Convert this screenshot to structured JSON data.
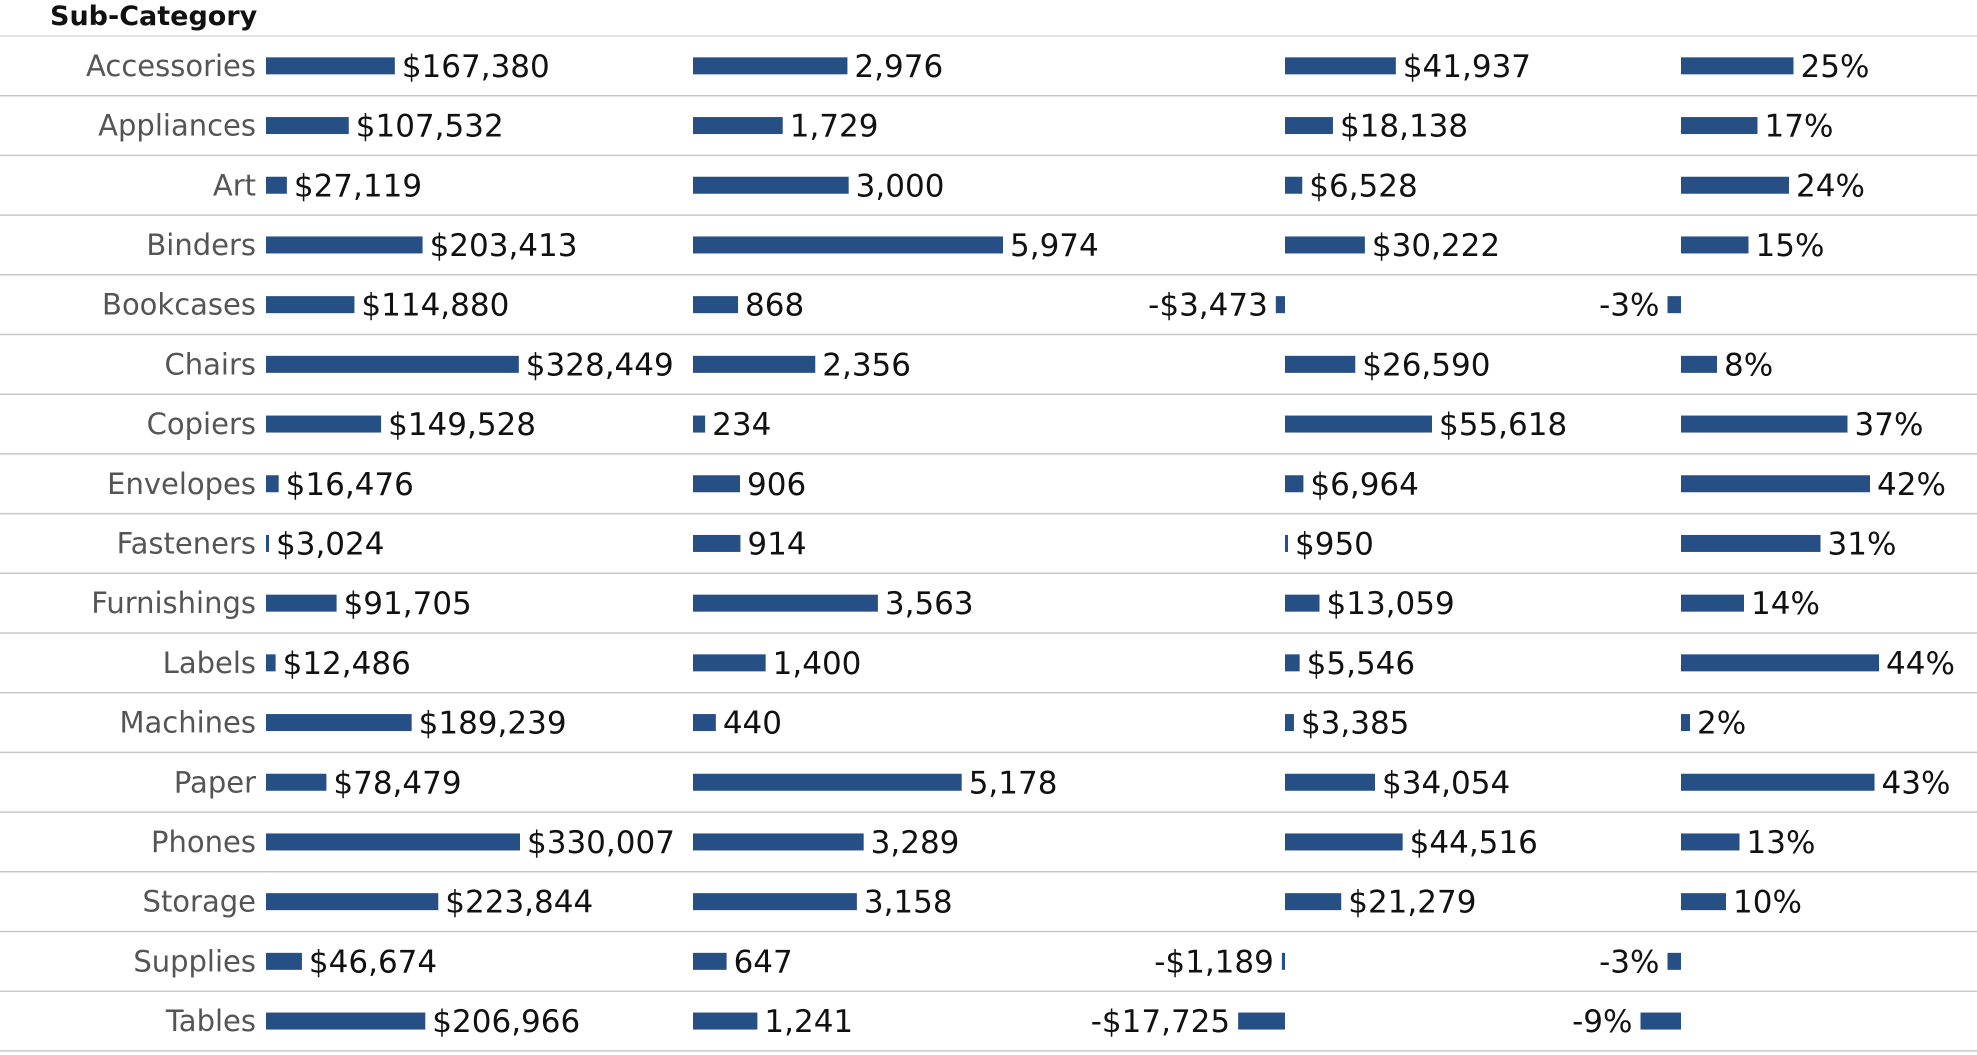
{
  "chart_data": {
    "type": "bar",
    "orientation": "horizontal",
    "header": "Sub-Category",
    "bar_color": "#264F85",
    "categories": [
      "Accessories",
      "Appliances",
      "Art",
      "Binders",
      "Bookcases",
      "Chairs",
      "Copiers",
      "Envelopes",
      "Fasteners",
      "Furnishings",
      "Labels",
      "Machines",
      "Paper",
      "Phones",
      "Storage",
      "Supplies",
      "Tables"
    ],
    "series": [
      {
        "values": [
          167380,
          107532,
          27119,
          203413,
          114880,
          328449,
          149528,
          16476,
          3024,
          91705,
          12486,
          189239,
          78479,
          330007,
          223844,
          46674,
          206966
        ],
        "labels": [
          "$167,380",
          "$107,532",
          "$27,119",
          "$203,413",
          "$114,880",
          "$328,449",
          "$149,528",
          "$16,476",
          "$3,024",
          "$91,705",
          "$12,486",
          "$189,239",
          "$78,479",
          "$330,007",
          "$223,844",
          "$46,674",
          "$206,966"
        ]
      },
      {
        "values": [
          2976,
          1729,
          3000,
          5974,
          868,
          2356,
          234,
          906,
          914,
          3563,
          1400,
          440,
          5178,
          3289,
          3158,
          647,
          1241
        ],
        "labels": [
          "2,976",
          "1,729",
          "3,000",
          "5,974",
          "868",
          "2,356",
          "234",
          "906",
          "914",
          "3,563",
          "1,400",
          "440",
          "5,178",
          "3,289",
          "3,158",
          "647",
          "1,241"
        ]
      },
      {
        "values": [
          41937,
          18138,
          6528,
          30222,
          -3473,
          26590,
          55618,
          6964,
          950,
          13059,
          5546,
          3385,
          34054,
          44516,
          21279,
          -1189,
          -17725
        ],
        "labels": [
          "$41,937",
          "$18,138",
          "$6,528",
          "$30,222",
          "-$3,473",
          "$26,590",
          "$55,618",
          "$6,964",
          "$950",
          "$13,059",
          "$5,546",
          "$3,385",
          "$34,054",
          "$44,516",
          "$21,279",
          "-$1,189",
          "-$17,725"
        ]
      },
      {
        "values": [
          25,
          17,
          24,
          15,
          -3,
          8,
          37,
          42,
          31,
          14,
          44,
          2,
          43,
          13,
          10,
          -3,
          -9
        ],
        "labels": [
          "25%",
          "17%",
          "24%",
          "15%",
          "-3%",
          "8%",
          "37%",
          "42%",
          "31%",
          "14%",
          "44%",
          "2%",
          "43%",
          "13%",
          "10%",
          "-3%",
          "-9%"
        ]
      }
    ]
  }
}
